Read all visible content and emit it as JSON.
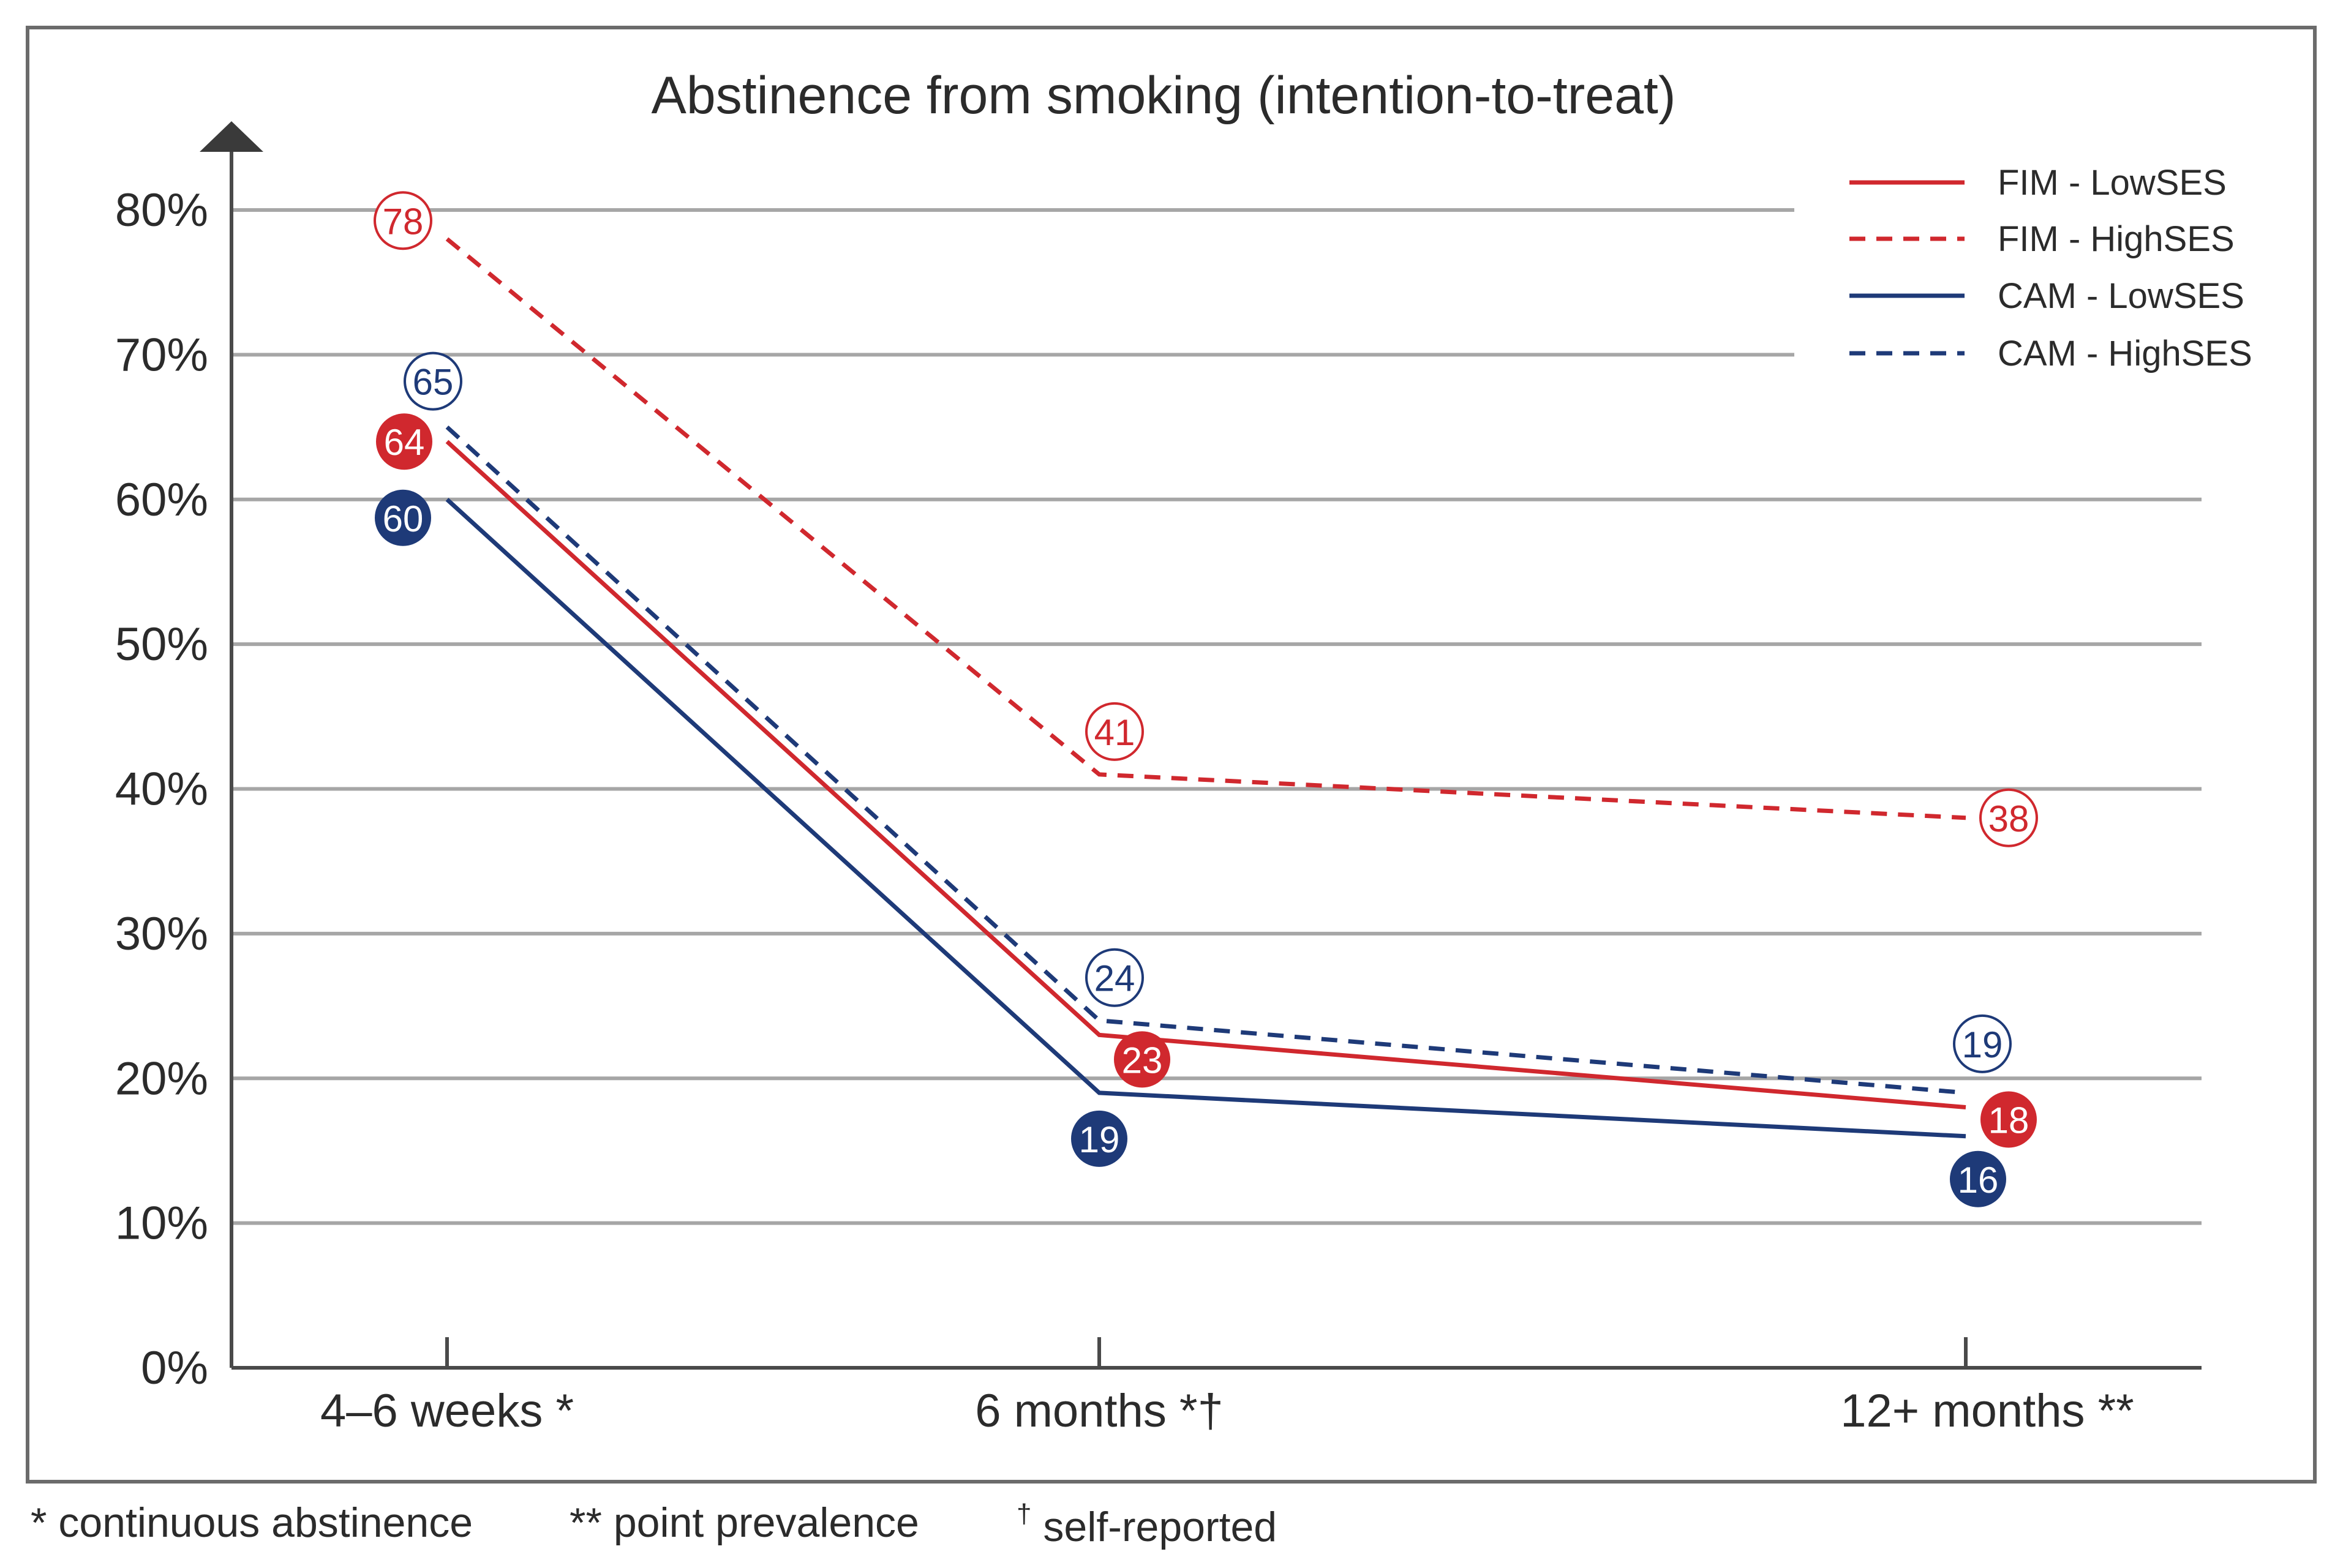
{
  "chart_data": {
    "type": "line",
    "title": "Abstinence from smoking (intention-to-treat)",
    "xlabel": "",
    "ylabel": "",
    "ylim": [
      0,
      80
    ],
    "yticks": [
      0,
      10,
      20,
      30,
      40,
      50,
      60,
      70,
      80
    ],
    "ytick_labels": [
      "0%",
      "10%",
      "20%",
      "30%",
      "40%",
      "50%",
      "60%",
      "70%",
      "80%"
    ],
    "categories": [
      "4–6 weeks *",
      "6 months *†",
      "12+ months **"
    ],
    "grid": true,
    "legend_position": "top-right",
    "series": [
      {
        "name": "FIM - LowSES",
        "color": "#d0282e",
        "dashed": false,
        "marker": "filled",
        "values": [
          64,
          23,
          18
        ]
      },
      {
        "name": "FIM - HighSES",
        "color": "#d0282e",
        "dashed": true,
        "marker": "hollow",
        "values": [
          78,
          41,
          38
        ]
      },
      {
        "name": "CAM - LowSES",
        "color": "#1e3a78",
        "dashed": false,
        "marker": "filled",
        "values": [
          60,
          19,
          16
        ]
      },
      {
        "name": "CAM - HighSES",
        "color": "#1e3a78",
        "dashed": true,
        "marker": "hollow",
        "values": [
          65,
          24,
          19
        ]
      }
    ]
  },
  "footnotes": {
    "continuous": "* continuous abstinence",
    "point": "** point prevalence",
    "dagger": "†",
    "self": "self-reported"
  },
  "colors": {
    "red": "#d0282e",
    "navy": "#1e3a78",
    "grid": "#a6a6a6",
    "axis": "#4a4a4a",
    "frame": "#6b6b6b"
  }
}
